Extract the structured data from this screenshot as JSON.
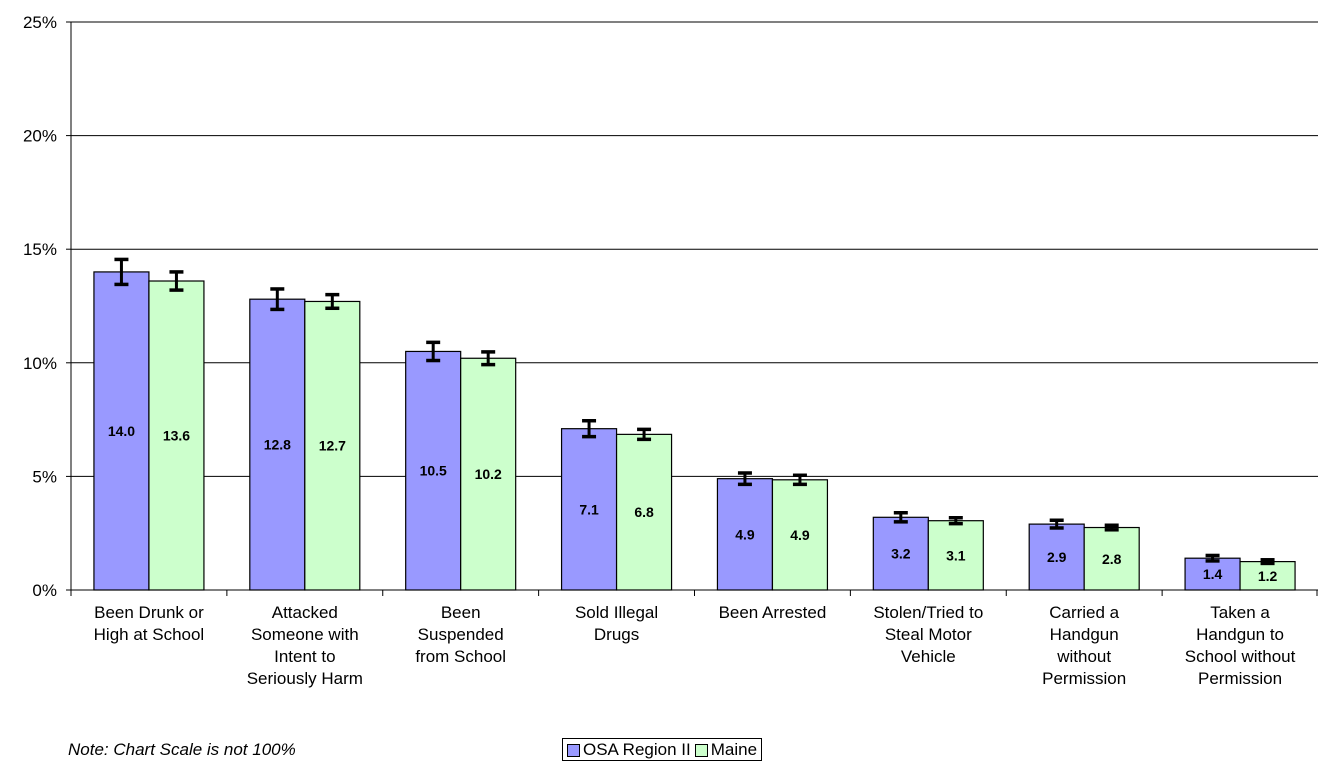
{
  "chart_data": {
    "type": "bar",
    "categories": [
      [
        "Been Drunk or",
        "High at School"
      ],
      [
        "Attacked",
        "Someone with",
        "Intent to",
        "Seriously Harm"
      ],
      [
        "Been",
        "Suspended",
        "from School"
      ],
      [
        "Sold Illegal",
        "Drugs"
      ],
      [
        "Been Arrested"
      ],
      [
        "Stolen/Tried to",
        "Steal Motor",
        "Vehicle"
      ],
      [
        "Carried a",
        "Handgun",
        "without",
        "Permission"
      ],
      [
        "Taken a",
        "Handgun to",
        "School without",
        "Permission"
      ]
    ],
    "series": [
      {
        "name": "OSA Region II",
        "color": "#9999ff",
        "values": [
          14.0,
          12.8,
          10.5,
          7.1,
          4.9,
          3.2,
          2.9,
          1.4
        ],
        "labels": [
          "14.0",
          "12.8",
          "10.5",
          "7.1",
          "4.9",
          "3.2",
          "2.9",
          "1.4"
        ],
        "error": [
          0.55,
          0.45,
          0.4,
          0.35,
          0.25,
          0.2,
          0.17,
          0.12
        ]
      },
      {
        "name": "Maine",
        "color": "#ccffcc",
        "values": [
          13.6,
          12.7,
          10.2,
          6.85,
          4.85,
          3.05,
          2.75,
          1.25
        ],
        "labels": [
          "13.6",
          "12.7",
          "10.2",
          "6.8",
          "4.9",
          "3.1",
          "2.8",
          "1.2"
        ],
        "error": [
          0.4,
          0.3,
          0.28,
          0.22,
          0.2,
          0.13,
          0.1,
          0.08
        ]
      }
    ],
    "yticks": [
      "0%",
      "5%",
      "10%",
      "15%",
      "20%",
      "25%"
    ],
    "ylim": [
      0,
      25
    ],
    "grid": true,
    "legend": "bottom-center"
  },
  "note": "Note: Chart Scale is not 100%",
  "legend": {
    "region": "OSA Region II",
    "maine": "Maine"
  }
}
